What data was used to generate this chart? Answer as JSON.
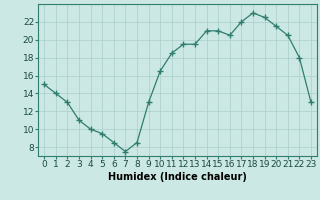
{
  "x": [
    0,
    1,
    2,
    3,
    4,
    5,
    6,
    7,
    8,
    9,
    10,
    11,
    12,
    13,
    14,
    15,
    16,
    17,
    18,
    19,
    20,
    21,
    22,
    23
  ],
  "y": [
    15,
    14,
    13,
    11,
    10,
    9.5,
    8.5,
    7.5,
    8.5,
    13,
    16.5,
    18.5,
    19.5,
    19.5,
    21,
    21,
    20.5,
    22,
    23,
    22.5,
    21.5,
    20.5,
    18,
    13
  ],
  "xlabel": "Humidex (Indice chaleur)",
  "ylim": [
    7,
    24
  ],
  "xlim": [
    -0.5,
    23.5
  ],
  "yticks": [
    8,
    10,
    12,
    14,
    16,
    18,
    20,
    22
  ],
  "xticks": [
    0,
    1,
    2,
    3,
    4,
    5,
    6,
    7,
    8,
    9,
    10,
    11,
    12,
    13,
    14,
    15,
    16,
    17,
    18,
    19,
    20,
    21,
    22,
    23
  ],
  "line_color": "#2e7d6e",
  "marker_color": "#2e7d6e",
  "bg_color": "#cce8e4",
  "grid_color": "#aacfcb",
  "label_fontsize": 7,
  "tick_fontsize": 6.5
}
